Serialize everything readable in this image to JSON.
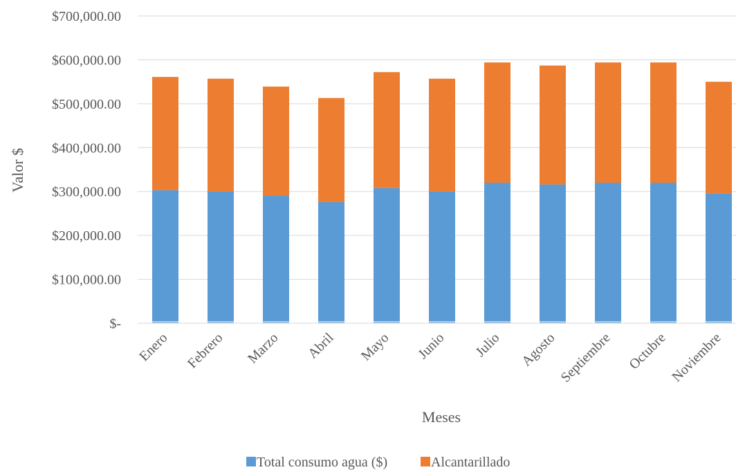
{
  "chart_data": {
    "type": "bar",
    "stacked": true,
    "title": "",
    "xlabel": "Meses",
    "ylabel": "Valor $",
    "categories": [
      "Enero",
      "Febrero",
      "Marzo",
      "Abril",
      "Mayo",
      "Junio",
      "Julio",
      "Agosto",
      "Septiembre",
      "Octubre",
      "Noviembre"
    ],
    "series": [
      {
        "name": "Total consumo agua ($)",
        "color": "#5B9BD5",
        "values": [
          303000,
          300000,
          290000,
          276000,
          308000,
          300000,
          320000,
          316000,
          320000,
          320000,
          296000
        ]
      },
      {
        "name": "Alcantarillado",
        "color": "#ED7D31",
        "values": [
          258000,
          257000,
          249000,
          237000,
          264000,
          257000,
          274000,
          271000,
          274000,
          274000,
          254000
        ]
      }
    ],
    "ylim": [
      0,
      700000
    ],
    "yticks": [
      0,
      100000,
      200000,
      300000,
      400000,
      500000,
      600000,
      700000
    ],
    "ytick_labels": [
      "$-",
      "$100,000.00",
      "$200,000.00",
      "$300,000.00",
      "$400,000.00",
      "$500,000.00",
      "$600,000.00",
      "$700,000.00"
    ],
    "grid": true,
    "legend_position": "bottom"
  }
}
